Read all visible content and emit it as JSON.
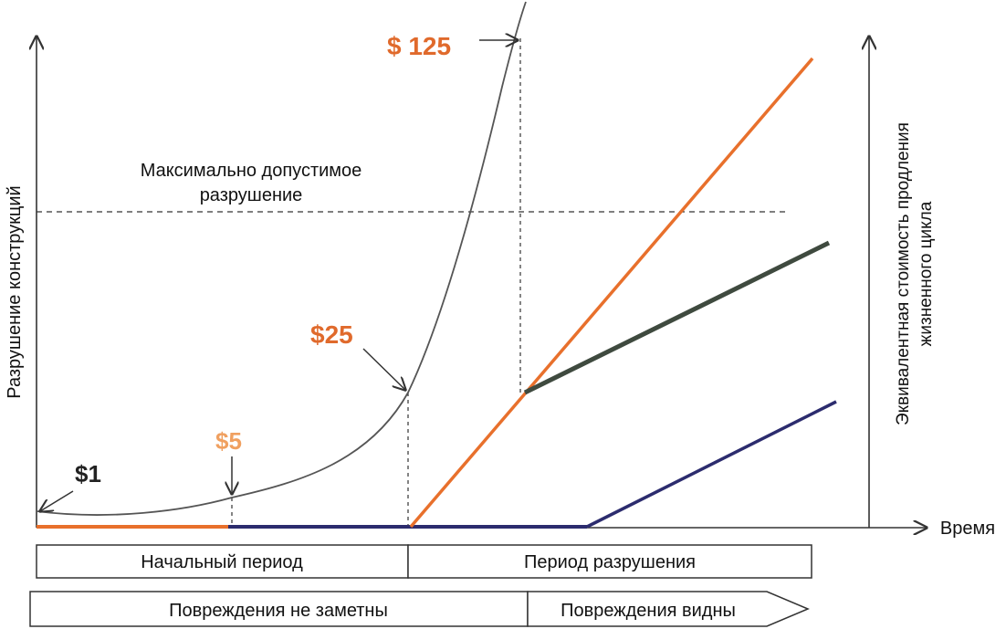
{
  "axes": {
    "y_left_label": "Разрушение конструкций",
    "y_right_label_line1": "Эквивалентная стоимость продления",
    "y_right_label_line2": "жизненного цикла",
    "x_label": "Время"
  },
  "threshold": {
    "label_line1": "Максимально допустимое",
    "label_line2": "разрушение"
  },
  "price_labels": [
    {
      "text": "$1",
      "color": "#222222"
    },
    {
      "text": "$5",
      "color": "#f0a060"
    },
    {
      "text": "$25",
      "color": "#e06a2c"
    },
    {
      "text": "$ 125",
      "color": "#e06a2c"
    }
  ],
  "periods": {
    "initial": "Начальный период",
    "damage": "Период разрушения"
  },
  "visibility": {
    "not_visible": "Повреждения не заметны",
    "visible": "Повреждения видны"
  },
  "colors": {
    "curve": "#555555",
    "orange": "#e8702c",
    "navy": "#2c2c6e",
    "dark_green": "#3f4a3f",
    "axis": "#333333"
  }
}
